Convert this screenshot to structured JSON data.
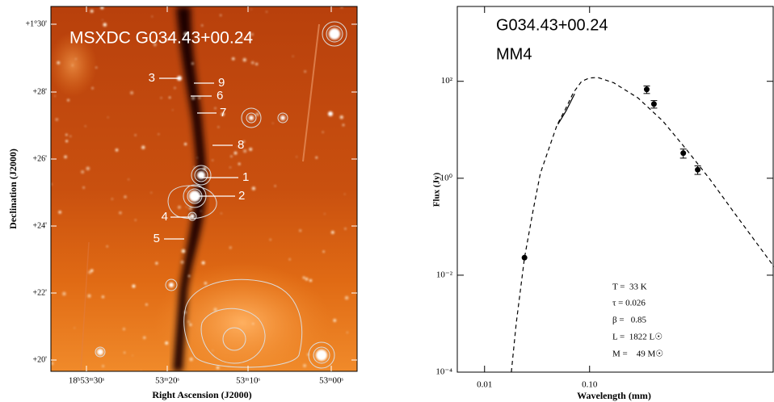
{
  "image_panel": {
    "title": "MSXDC G034.43+00.24",
    "sources": [
      "1",
      "2",
      "3",
      "4",
      "5",
      "6",
      "7",
      "8",
      "9"
    ],
    "x_label": "Right Ascension (J2000)",
    "y_label": "Declination (J2000)",
    "x_ticks": [
      "18ʰ53ᵐ30ˢ",
      "53ᵐ20ˢ",
      "53ᵐ10ˢ",
      "53ᵐ00ˢ"
    ],
    "y_ticks": [
      "+1°30'",
      "+28'",
      "+26'",
      "+24'",
      "+22'",
      "+20'"
    ]
  },
  "chart_data": {
    "type": "scatter",
    "annotations": [
      "G034.43+00.24",
      "MM4",
      "T =  33 K",
      "τ = 0.026",
      "β =   0.85",
      "L =  1822 L☉",
      "M =    49 M☉"
    ],
    "x_label": "Wavelength (mm)",
    "y_label": "Flux (Jy)",
    "log_x": true,
    "log_y": true,
    "xlim": [
      0.0055,
      5.7
    ],
    "ylim": [
      0.0001,
      3500
    ],
    "xticks": [
      0.01,
      {
        "value": 0.1,
        "label": "0.10"
      }
    ],
    "yticks": [
      {
        "value": 0.0001,
        "label": "10⁻⁴"
      },
      {
        "value": 0.01,
        "label": "10⁻²"
      },
      {
        "value": 1,
        "label": "10⁰"
      },
      {
        "value": 100,
        "label": "10²"
      }
    ],
    "series": [
      {
        "marker": "circle",
        "color": "#000000",
        "x": [
          0.024,
          0.35,
          0.41,
          0.78,
          1.07
        ],
        "values": [
          0.023,
          68,
          34,
          3.3,
          1.5
        ],
        "errors": [
          null,
          12,
          6,
          0.7,
          0.3
        ]
      },
      {
        "line_style": "dashed",
        "color": "#000000",
        "x": [
          0.018,
          0.02,
          0.024,
          0.029,
          0.034,
          0.042,
          0.049,
          0.059,
          0.07,
          0.084,
          0.1,
          0.12,
          0.17,
          0.29,
          0.5,
          0.83,
          1.4,
          2.4,
          5.7
        ],
        "values": [
          0.0001,
          0.001,
          0.023,
          0.22,
          1.26,
          4.8,
          12.6,
          27,
          58,
          100,
          117,
          120,
          93,
          45,
          15,
          4,
          0.95,
          0.19,
          0.015
        ]
      },
      {
        "line_style": "solid",
        "color": "#000000",
        "x": [
          0.05,
          0.06,
          0.072
        ],
        "values": [
          13,
          25,
          55
        ]
      }
    ]
  }
}
